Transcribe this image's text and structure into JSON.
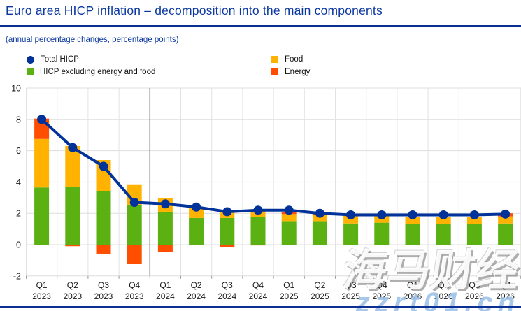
{
  "header": {
    "title": "Euro area HICP inflation – decomposition into the main components",
    "subtitle": "(annual percentage changes, percentage points)"
  },
  "legend": [
    {
      "label": "Total HICP",
      "shape": "circle",
      "color": "#003299",
      "column": 1
    },
    {
      "label": "HICP excluding energy and food",
      "shape": "square",
      "color": "#5bb012",
      "column": 1
    },
    {
      "label": "Food",
      "shape": "square",
      "color": "#ffb200",
      "column": 2
    },
    {
      "label": "Energy",
      "shape": "square",
      "color": "#ff4e00",
      "column": 2
    }
  ],
  "chart_data": {
    "type": "bar",
    "subtype": "stacked-bars-with-line",
    "categories": [
      "Q1 2023",
      "Q2 2023",
      "Q3 2023",
      "Q4 2023",
      "Q1 2024",
      "Q2 2024",
      "Q3 2024",
      "Q4 2024",
      "Q1 2025",
      "Q2 2025",
      "Q3 2025",
      "Q4 2025",
      "Q1 2026",
      "Q2 2026",
      "Q3 2026",
      "Q4 2026"
    ],
    "series": [
      {
        "name": "HICP excluding energy and food",
        "type": "bar",
        "color": "#5bb012",
        "values": [
          3.65,
          3.7,
          3.4,
          2.55,
          2.1,
          1.7,
          1.7,
          1.75,
          1.5,
          1.5,
          1.35,
          1.4,
          1.3,
          1.3,
          1.3,
          1.35
        ]
      },
      {
        "name": "Food",
        "type": "bar",
        "color": "#ffb200",
        "values": [
          3.1,
          2.6,
          2.0,
          1.3,
          0.85,
          0.7,
          0.5,
          0.45,
          0.45,
          0.4,
          0.5,
          0.45,
          0.45,
          0.45,
          0.45,
          0.45
        ]
      },
      {
        "name": "Energy",
        "type": "bar",
        "color": "#ff4e00",
        "values": [
          1.3,
          -0.1,
          -0.6,
          -1.25,
          -0.45,
          0.0,
          -0.15,
          -0.05,
          0.15,
          0.1,
          0.1,
          0.0,
          0.0,
          0.0,
          0.0,
          0.2
        ]
      },
      {
        "name": "Total HICP",
        "type": "line",
        "color": "#003299",
        "values": [
          8.0,
          6.2,
          5.0,
          2.7,
          2.6,
          2.4,
          2.1,
          2.2,
          2.2,
          2.0,
          1.9,
          1.9,
          1.9,
          1.9,
          1.9,
          1.95
        ]
      }
    ],
    "title": "Euro area HICP inflation – decomposition into the main components",
    "xlabel": "",
    "ylabel": "",
    "ylim": [
      -2,
      10
    ],
    "yticks": [
      10,
      8,
      6,
      4,
      2,
      0,
      -2
    ],
    "grid": true,
    "legend_position": "top",
    "projection_divider_after_index": 3
  },
  "watermark": {
    "cjk": "海马财经",
    "latin": "zzrt01.cn"
  }
}
